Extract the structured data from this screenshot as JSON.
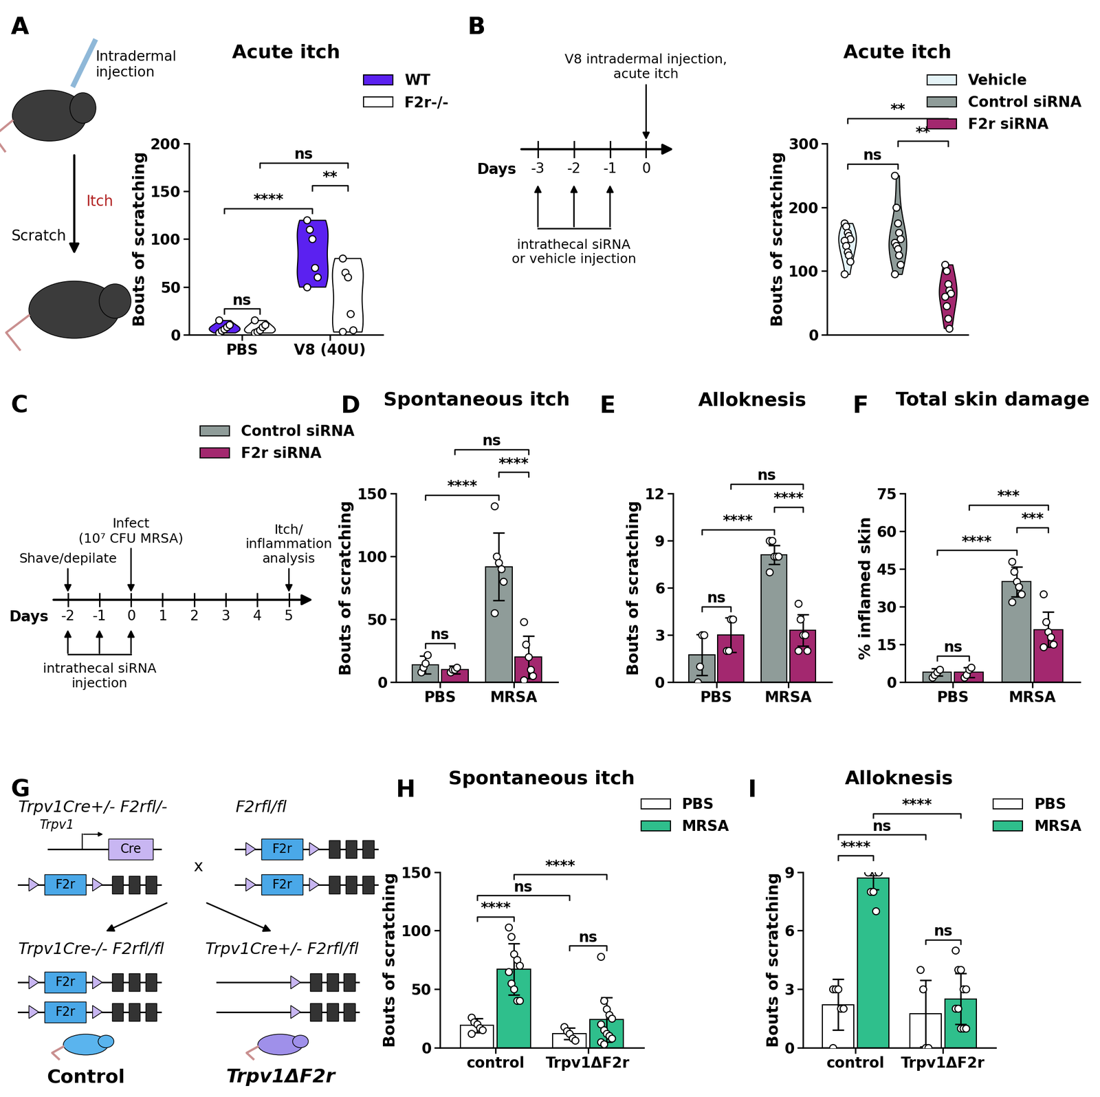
{
  "chart_data": [
    {
      "panel": "A",
      "type": "violin",
      "title": "Acute itch",
      "y_label": "Bouts of scratching",
      "categories": [
        "PBS",
        "V8 (40U)"
      ],
      "ylim": [
        0,
        200
      ],
      "yticks": [
        0,
        50,
        100,
        150,
        200
      ],
      "legend": "upper right",
      "series": [
        {
          "name": "WT",
          "color": "#5b21f0",
          "points": [
            [
              2,
              4,
              6,
              8,
              10,
              15
            ],
            [
              120,
              110,
              100,
              70,
              60,
              50
            ]
          ]
        },
        {
          "name": "F2r-/-",
          "color": "#ffffff",
          "points": [
            [
              2,
              3,
              5,
              8,
              10,
              15
            ],
            [
              80,
              65,
              60,
              22,
              5,
              3
            ]
          ]
        }
      ],
      "comparisons": [
        {
          "a": [
            "PBS",
            "WT"
          ],
          "b": [
            "PBS",
            "F2r-/-"
          ],
          "label": "ns"
        },
        {
          "a": [
            "PBS",
            "WT"
          ],
          "b": [
            "V8 (40U)",
            "WT"
          ],
          "label": "****"
        },
        {
          "a": [
            "V8 (40U)",
            "WT"
          ],
          "b": [
            "V8 (40U)",
            "F2r-/-"
          ],
          "label": "**"
        },
        {
          "a": [
            "PBS",
            "F2r-/-"
          ],
          "b": [
            "V8 (40U)",
            "F2r-/-"
          ],
          "label": "ns"
        }
      ]
    },
    {
      "panel": "B",
      "type": "violin",
      "title": "Acute itch",
      "y_label": "Bouts of scratching",
      "ylim": [
        0,
        300
      ],
      "yticks": [
        0,
        100,
        200,
        300
      ],
      "legend": "upper right",
      "tick_labels": "y",
      "series": [
        {
          "name": "Vehicle",
          "color": "#e4f3f7",
          "points": [
            [
              175,
              170,
              160,
              155,
              150,
              148,
              140,
              130,
              125,
              115,
              95
            ]
          ]
        },
        {
          "name": "Control siRNA",
          "color": "#8f9c99",
          "points": [
            [
              250,
              200,
              175,
              160,
              150,
              145,
              140,
              135,
              125,
              110,
              95
            ]
          ]
        },
        {
          "name": "F2r siRNA",
          "color": "#a3286f",
          "points": [
            [
              110,
              100,
              80,
              70,
              65,
              60,
              45,
              25,
              10
            ]
          ]
        }
      ],
      "comparisons": [
        {
          "a": [
            "Vehicle"
          ],
          "b": [
            "Control siRNA"
          ],
          "label": "ns"
        },
        {
          "a": [
            "Control siRNA"
          ],
          "b": [
            "F2r siRNA"
          ],
          "label": "**"
        },
        {
          "a": [
            "Vehicle"
          ],
          "b": [
            "F2r siRNA"
          ],
          "label": "**"
        }
      ]
    },
    {
      "panel": "D",
      "type": "bar",
      "title": "Spontaneous itch",
      "y_label": "Bouts of scratching",
      "categories": [
        "PBS",
        "MRSA"
      ],
      "ylim": [
        0,
        150
      ],
      "yticks": [
        0,
        50,
        100,
        150
      ],
      "legend": "upper left",
      "series": [
        {
          "name": "Control siRNA",
          "color": "#8f9c99",
          "values": [
            14,
            92
          ],
          "errors": [
            7,
            27
          ],
          "points": [
            [
              8,
              12,
              15,
              22
            ],
            [
              140,
              100,
              95,
              90,
              80,
              55
            ]
          ]
        },
        {
          "name": "F2r siRNA",
          "color": "#a3286f",
          "values": [
            10,
            20
          ],
          "errors": [
            3,
            17
          ],
          "points": [
            [
              8,
              10,
              10,
              12
            ],
            [
              48,
              30,
              20,
              10,
              5,
              2
            ]
          ]
        }
      ],
      "comparisons": [
        {
          "a": [
            "PBS",
            "Control siRNA"
          ],
          "b": [
            "PBS",
            "F2r siRNA"
          ],
          "label": "ns"
        },
        {
          "a": [
            "PBS",
            "Control siRNA"
          ],
          "b": [
            "MRSA",
            "Control siRNA"
          ],
          "label": "****"
        },
        {
          "a": [
            "MRSA",
            "Control siRNA"
          ],
          "b": [
            "MRSA",
            "F2r siRNA"
          ],
          "label": "****"
        },
        {
          "a": [
            "PBS",
            "F2r siRNA"
          ],
          "b": [
            "MRSA",
            "F2r siRNA"
          ],
          "label": "ns"
        }
      ]
    },
    {
      "panel": "E",
      "type": "bar",
      "title": "Alloknesis",
      "y_label": "Bouts of scratching",
      "categories": [
        "PBS",
        "MRSA"
      ],
      "ylim": [
        0,
        12
      ],
      "yticks": [
        0,
        3,
        6,
        9,
        12
      ],
      "series": [
        {
          "name": "Control siRNA",
          "color": "#8f9c99",
          "values": [
            1.75,
            8.1
          ],
          "errors": [
            1.3,
            0.6
          ],
          "points": [
            [
              0,
              1,
              3,
              3
            ],
            [
              9,
              9,
              8,
              8,
              8,
              7
            ]
          ]
        },
        {
          "name": "F2r siRNA",
          "color": "#a3286f",
          "values": [
            3,
            3.3
          ],
          "errors": [
            1.1,
            1.0
          ],
          "points": [
            [
              2,
              2,
              4,
              4
            ],
            [
              5,
              4,
              3,
              3,
              2,
              2
            ]
          ]
        }
      ],
      "comparisons": [
        {
          "a": [
            "PBS",
            "Control siRNA"
          ],
          "b": [
            "PBS",
            "F2r siRNA"
          ],
          "label": "ns"
        },
        {
          "a": [
            "PBS",
            "Control siRNA"
          ],
          "b": [
            "MRSA",
            "Control siRNA"
          ],
          "label": "****"
        },
        {
          "a": [
            "MRSA",
            "Control siRNA"
          ],
          "b": [
            "MRSA",
            "F2r siRNA"
          ],
          "label": "****"
        },
        {
          "a": [
            "PBS",
            "F2r siRNA"
          ],
          "b": [
            "MRSA",
            "F2r siRNA"
          ],
          "label": "ns"
        }
      ]
    },
    {
      "panel": "F",
      "type": "bar",
      "title": "Total skin damage",
      "y_label": "% inflamed skin",
      "categories": [
        "PBS",
        "MRSA"
      ],
      "ylim": [
        0,
        75
      ],
      "yticks": [
        0,
        15,
        30,
        45,
        60,
        75
      ],
      "series": [
        {
          "name": "Control siRNA",
          "color": "#8f9c99",
          "values": [
            4,
            40
          ],
          "errors": [
            1.5,
            6
          ],
          "points": [
            [
              2,
              3,
              4,
              5
            ],
            [
              48,
              44,
              40,
              38,
              35,
              32
            ]
          ]
        },
        {
          "name": "F2r siRNA",
          "color": "#a3286f",
          "values": [
            4,
            21
          ],
          "errors": [
            2,
            7
          ],
          "points": [
            [
              2,
              3,
              5,
              6
            ],
            [
              35,
              24,
              20,
              18,
              15,
              14
            ]
          ]
        }
      ],
      "comparisons": [
        {
          "a": [
            "PBS",
            "Control siRNA"
          ],
          "b": [
            "PBS",
            "F2r siRNA"
          ],
          "label": "ns"
        },
        {
          "a": [
            "PBS",
            "Control siRNA"
          ],
          "b": [
            "MRSA",
            "Control siRNA"
          ],
          "label": "****"
        },
        {
          "a": [
            "MRSA",
            "Control siRNA"
          ],
          "b": [
            "MRSA",
            "F2r siRNA"
          ],
          "label": "***"
        },
        {
          "a": [
            "PBS",
            "F2r siRNA"
          ],
          "b": [
            "MRSA",
            "F2r siRNA"
          ],
          "label": "***"
        }
      ]
    },
    {
      "panel": "H",
      "type": "bar",
      "title": "Spontaneous itch",
      "y_label": "Bouts of scratching",
      "categories": [
        "control",
        "Trpv1ΔF2r"
      ],
      "ylim": [
        0,
        150
      ],
      "yticks": [
        0,
        50,
        100,
        150
      ],
      "legend": "upper right",
      "series": [
        {
          "name": "PBS",
          "color": "#ffffff",
          "values": [
            19,
            12
          ],
          "errors": [
            6,
            5
          ],
          "points": [
            [
              26,
              22,
              20,
              17,
              15,
              12
            ],
            [
              18,
              14,
              12,
              8,
              6
            ]
          ]
        },
        {
          "name": "MRSA",
          "color": "#2fbf8c",
          "values": [
            67,
            24
          ],
          "errors": [
            22,
            19
          ],
          "points": [
            [
              103,
              95,
              80,
              75,
              70,
              65,
              55,
              50,
              40,
              40
            ],
            [
              78,
              40,
              33,
              28,
              25,
              20,
              15,
              12,
              10,
              8,
              5,
              3
            ]
          ]
        }
      ],
      "comparisons": [
        {
          "a": [
            "control",
            "PBS"
          ],
          "b": [
            "control",
            "MRSA"
          ],
          "label": "****"
        },
        {
          "a": [
            "Trpv1ΔF2r",
            "PBS"
          ],
          "b": [
            "Trpv1ΔF2r",
            "MRSA"
          ],
          "label": "ns"
        },
        {
          "a": [
            "control",
            "PBS"
          ],
          "b": [
            "Trpv1ΔF2r",
            "PBS"
          ],
          "label": "ns"
        },
        {
          "a": [
            "control",
            "MRSA"
          ],
          "b": [
            "Trpv1ΔF2r",
            "MRSA"
          ],
          "label": "****"
        }
      ]
    },
    {
      "panel": "I",
      "type": "bar",
      "title": "Alloknesis",
      "y_label": "Bouts of scratching",
      "categories": [
        "control",
        "Trpv1ΔF2r"
      ],
      "ylim": [
        0,
        9
      ],
      "yticks": [
        0,
        3,
        6,
        9
      ],
      "legend": "upper right",
      "series": [
        {
          "name": "PBS",
          "color": "#ffffff",
          "values": [
            2.2,
            1.75
          ],
          "errors": [
            1.3,
            1.7
          ],
          "points": [
            [
              3,
              3,
              3,
              2,
              2,
              0
            ],
            [
              4,
              3,
              0,
              0
            ]
          ]
        },
        {
          "name": "MRSA",
          "color": "#2fbf8c",
          "values": [
            8.7,
            2.5
          ],
          "errors": [
            0.6,
            1.3
          ],
          "points": [
            [
              9,
              9,
              9,
              9,
              9,
              9,
              8,
              8,
              7
            ],
            [
              5,
              4,
              4,
              3,
              3,
              2,
              2,
              1,
              1,
              1
            ]
          ]
        }
      ],
      "comparisons": [
        {
          "a": [
            "control",
            "PBS"
          ],
          "b": [
            "control",
            "MRSA"
          ],
          "label": "****"
        },
        {
          "a": [
            "Trpv1ΔF2r",
            "PBS"
          ],
          "b": [
            "Trpv1ΔF2r",
            "MRSA"
          ],
          "label": "ns"
        },
        {
          "a": [
            "control",
            "PBS"
          ],
          "b": [
            "Trpv1ΔF2r",
            "PBS"
          ],
          "label": "ns"
        },
        {
          "a": [
            "control",
            "MRSA"
          ],
          "b": [
            "Trpv1ΔF2r",
            "MRSA"
          ],
          "label": "****"
        }
      ]
    }
  ],
  "schematics": {
    "A": {
      "panel": "A",
      "injection": "Intradermal\ninjection",
      "itch": "Itch",
      "scratch": "Scratch"
    },
    "B": {
      "panel": "B",
      "top_note": "V8 intradermal injection,\nacute itch",
      "days_label": "Days",
      "days": [
        -3,
        -2,
        -1,
        0
      ],
      "bottom_note": "intrathecal siRNA\nor vehicle injection"
    },
    "C": {
      "panel": "C",
      "days_label": "Days",
      "days": [
        -2,
        -1,
        0,
        1,
        2,
        3,
        4,
        5
      ],
      "shave": "Shave/depilate",
      "infect": "Infect\n(10⁷ CFU MRSA)",
      "analysis": "Itch/\ninflammation\nanalysis",
      "bottom_note": "intrathecal siRNA\ninjection"
    },
    "G": {
      "panel": "G",
      "parent_left": "Trpv1Cre+/- F2rfl/-",
      "parent_right": "F2rfl/fl",
      "promoter": "Trpv1",
      "cre": "Cre",
      "gene": "F2r",
      "cross": "x",
      "offspring_left": "Trpv1Cre-/- F2rfl/fl",
      "offspring_right": "Trpv1Cre+/- F2rfl/fl",
      "name_left": "Control",
      "name_right": "Trpv1ΔF2r"
    }
  }
}
